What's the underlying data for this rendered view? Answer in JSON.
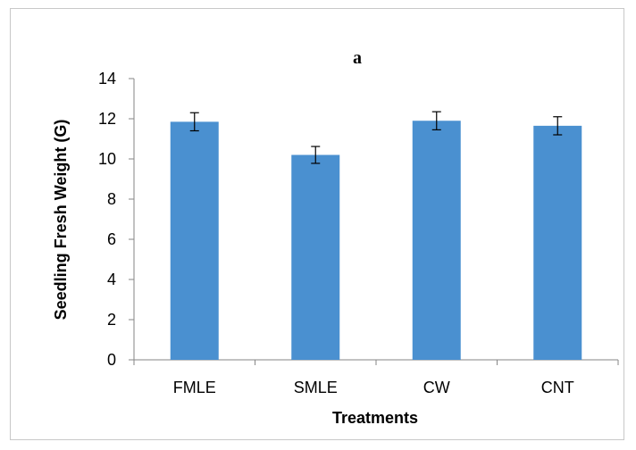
{
  "chart_data": {
    "type": "bar",
    "title": "a",
    "xlabel": "Treatments",
    "ylabel": "Seedling Fresh Weight (G)",
    "categories": [
      "FMLE",
      "SMLE",
      "CW",
      "CNT"
    ],
    "values": [
      11.85,
      10.2,
      11.9,
      11.65
    ],
    "errors": [
      0.45,
      0.42,
      0.45,
      0.45
    ],
    "ylim": [
      0,
      14
    ],
    "yticks": [
      0,
      2,
      4,
      6,
      8,
      10,
      12,
      14
    ],
    "grid": false,
    "legend": "none",
    "bar_color": "#4a90d0",
    "error_bar_color": "#000000"
  }
}
